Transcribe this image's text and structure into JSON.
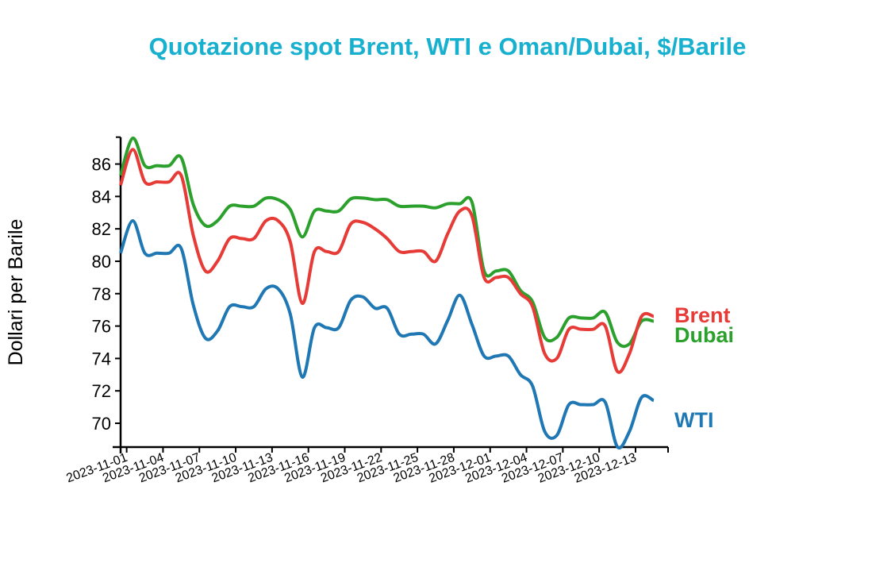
{
  "chart_data": {
    "type": "line",
    "title": "Quotazione spot Brent, WTI e Oman/Dubai, $/Barile",
    "xlabel": "",
    "ylabel": "Dollari per Barile",
    "ylim": [
      68.53,
      87.66
    ],
    "yticks": [
      70,
      72,
      74,
      76,
      78,
      80,
      82,
      84,
      86
    ],
    "x_start": "2023-10-31",
    "x_step_days": 1,
    "xtick_labels": [
      "2023-11-01",
      "2023-11-04",
      "2023-11-07",
      "2023-11-10",
      "2023-11-13",
      "2023-11-16",
      "2023-11-19",
      "2023-11-22",
      "2023-11-25",
      "2023-11-28",
      "2023-12-01",
      "2023-12-04",
      "2023-12-07",
      "2023-12-10",
      "2023-12-13"
    ],
    "grid": false,
    "legend": "inline-right",
    "series": [
      {
        "name": "Brent",
        "color": "#e63b36",
        "values": [
          84.7,
          86.9,
          84.9,
          84.9,
          84.9,
          85.3,
          81.6,
          79.4,
          80.0,
          81.4,
          81.4,
          81.4,
          82.5,
          82.5,
          81.2,
          77.4,
          80.6,
          80.6,
          80.6,
          82.3,
          82.4,
          82.0,
          81.4,
          80.6,
          80.6,
          80.6,
          80.0,
          81.7,
          83.1,
          82.8,
          79.0,
          79.0,
          79.0,
          78.0,
          77.2,
          74.3,
          74.0,
          75.8,
          75.8,
          75.8,
          76.0,
          73.2,
          74.3,
          76.6,
          76.6
        ]
      },
      {
        "name": "Dubai",
        "color": "#2ca02c",
        "values": [
          85.3,
          87.6,
          85.9,
          85.9,
          85.9,
          86.4,
          83.5,
          82.2,
          82.5,
          83.4,
          83.4,
          83.4,
          83.9,
          83.8,
          83.2,
          81.5,
          83.1,
          83.1,
          83.1,
          83.85,
          83.9,
          83.8,
          83.8,
          83.4,
          83.4,
          83.4,
          83.3,
          83.55,
          83.55,
          83.65,
          79.4,
          79.4,
          79.4,
          78.2,
          77.5,
          75.3,
          75.3,
          76.5,
          76.5,
          76.5,
          76.85,
          75.0,
          74.9,
          76.3,
          76.3
        ]
      },
      {
        "name": "WTI",
        "color": "#1f77b4",
        "values": [
          80.5,
          82.5,
          80.5,
          80.5,
          80.5,
          80.8,
          77.3,
          75.25,
          75.7,
          77.2,
          77.2,
          77.2,
          78.3,
          78.3,
          76.75,
          72.85,
          75.9,
          75.9,
          75.9,
          77.6,
          77.8,
          77.1,
          77.1,
          75.5,
          75.5,
          75.5,
          74.9,
          76.35,
          77.9,
          76.1,
          74.15,
          74.15,
          74.15,
          73.0,
          72.3,
          69.5,
          69.25,
          71.15,
          71.15,
          71.15,
          71.3,
          68.55,
          69.5,
          71.6,
          71.4
        ]
      }
    ]
  }
}
